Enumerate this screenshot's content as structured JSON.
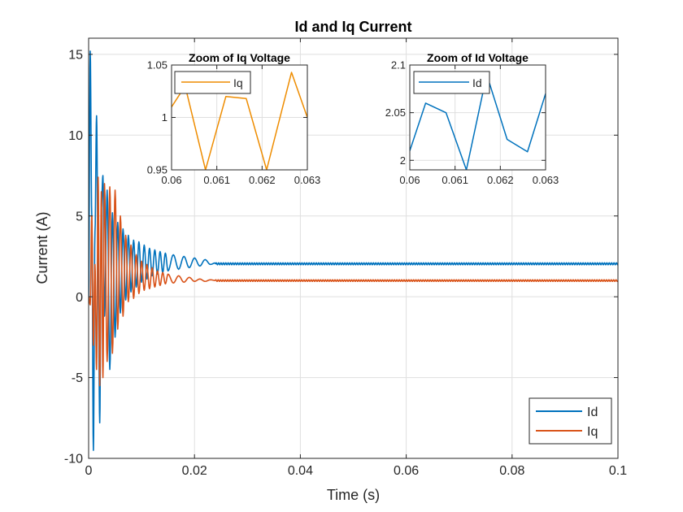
{
  "chart_data": [
    {
      "type": "line",
      "title": "Id and Iq Current",
      "xlabel": "Time (s)",
      "ylabel": "Current (A)",
      "xlim": [
        0,
        0.1
      ],
      "ylim": [
        -10,
        16
      ],
      "xticks": [
        0,
        0.02,
        0.04,
        0.06,
        0.08,
        0.1
      ],
      "yticks": [
        -10,
        -5,
        0,
        5,
        10,
        15
      ],
      "xtick_labels": [
        "0",
        "0.02",
        "0.04",
        "0.06",
        "0.08",
        "0.1"
      ],
      "ytick_labels": [
        "-10",
        "-5",
        "0",
        "5",
        "10",
        "15"
      ],
      "grid": true,
      "legend_position": "bottom-right",
      "series": [
        {
          "name": "Id",
          "color": "#0072BD",
          "description_values": {
            "steady_value": 2.04,
            "ripple": 0.06,
            "first_peak": 15.2,
            "first_trough": -9.5
          },
          "x": [
            0,
            0.0003,
            0.0006,
            0.0009,
            0.0012,
            0.0015,
            0.0018,
            0.0021,
            0.0024,
            0.0027,
            0.003,
            0.0035,
            0.004,
            0.0045,
            0.005,
            0.0055,
            0.006,
            0.0065,
            0.007,
            0.0075,
            0.008,
            0.0085,
            0.009,
            0.0095,
            0.01,
            0.0105,
            0.011,
            0.0115,
            0.012,
            0.0125,
            0.013,
            0.0135,
            0.014,
            0.0145,
            0.015,
            0.016,
            0.017,
            0.018,
            0.019,
            0.02,
            0.021,
            0.022,
            0.023,
            0.024,
            0.1
          ],
          "values": [
            0,
            15.2,
            5.0,
            -9.5,
            4.0,
            11.2,
            1.5,
            -7.8,
            5.5,
            7.5,
            -1.2,
            6.6,
            -4.5,
            5.2,
            -2.5,
            4.6,
            -1.0,
            4.2,
            -0.2,
            3.8,
            0.3,
            3.5,
            0.6,
            3.4,
            0.9,
            3.2,
            1.1,
            3.0,
            1.3,
            2.9,
            1.4,
            2.8,
            1.5,
            2.7,
            1.6,
            2.6,
            1.7,
            2.5,
            1.8,
            2.4,
            1.9,
            2.3,
            2.0,
            2.1,
            2.04
          ]
        },
        {
          "name": "Iq",
          "color": "#D95319",
          "description_values": {
            "steady_value": 1.0,
            "ripple": 0.05,
            "first_peak": 7.4,
            "first_trough": -5.5
          },
          "x": [
            0,
            0.0003,
            0.0006,
            0.0009,
            0.0012,
            0.0015,
            0.0018,
            0.0021,
            0.0024,
            0.0027,
            0.003,
            0.0035,
            0.004,
            0.0045,
            0.005,
            0.0055,
            0.006,
            0.0065,
            0.007,
            0.0075,
            0.008,
            0.0085,
            0.009,
            0.0095,
            0.01,
            0.0105,
            0.011,
            0.0115,
            0.012,
            0.0125,
            0.013,
            0.0135,
            0.014,
            0.0145,
            0.015,
            0.016,
            0.017,
            0.018,
            0.019,
            0.02,
            0.021,
            0.022,
            0.023,
            0.024,
            0.1
          ],
          "values": [
            0,
            -0.5,
            5.0,
            -3.0,
            2.0,
            -4.5,
            7.4,
            -5.5,
            6.5,
            -5.0,
            7.0,
            -4.0,
            6.8,
            -3.5,
            6.6,
            -2.0,
            5.0,
            -1.2,
            3.8,
            -0.3,
            3.2,
            -0.1,
            2.6,
            0.2,
            2.2,
            0.4,
            2.0,
            0.5,
            1.8,
            0.6,
            1.6,
            0.7,
            1.5,
            0.8,
            1.4,
            0.85,
            1.3,
            0.9,
            1.2,
            0.95,
            1.1,
            0.95,
            1.05,
            1.0,
            1.0
          ]
        }
      ]
    },
    {
      "type": "line",
      "title": "Zoom of Iq Voltage",
      "xlim": [
        0.06,
        0.063
      ],
      "ylim": [
        0.95,
        1.05
      ],
      "xticks": [
        0.06,
        0.061,
        0.062,
        0.063
      ],
      "yticks": [
        0.95,
        1,
        1.05
      ],
      "xtick_labels": [
        "0.06",
        "0.061",
        "0.062",
        "0.063"
      ],
      "ytick_labels": [
        "0.95",
        "1",
        "1.05"
      ],
      "grid": true,
      "legend_position": "top-left",
      "series": [
        {
          "name": "Iq",
          "color": "#EE8C00",
          "x": [
            0.06,
            0.0603,
            0.06075,
            0.0612,
            0.06165,
            0.0621,
            0.06265,
            0.063
          ],
          "values": [
            1.01,
            1.03,
            0.95,
            1.02,
            1.018,
            0.95,
            1.043,
            1.0
          ]
        }
      ]
    },
    {
      "type": "line",
      "title": "Zoom of Id Voltage",
      "xlim": [
        0.06,
        0.063
      ],
      "ylim": [
        1.99,
        2.1
      ],
      "xticks": [
        0.06,
        0.061,
        0.062,
        0.063
      ],
      "yticks": [
        2,
        2.05,
        2.1
      ],
      "xtick_labels": [
        "0.06",
        "0.061",
        "0.062",
        "0.063"
      ],
      "ytick_labels": [
        "2",
        "2.05",
        "2.1"
      ],
      "grid": true,
      "legend_position": "top-left",
      "series": [
        {
          "name": "Id",
          "color": "#0072BD",
          "x": [
            0.06,
            0.06035,
            0.0608,
            0.06125,
            0.0617,
            0.06215,
            0.0626,
            0.063
          ],
          "values": [
            2.01,
            2.06,
            2.05,
            1.99,
            2.09,
            2.022,
            2.009,
            2.07
          ]
        }
      ]
    }
  ]
}
